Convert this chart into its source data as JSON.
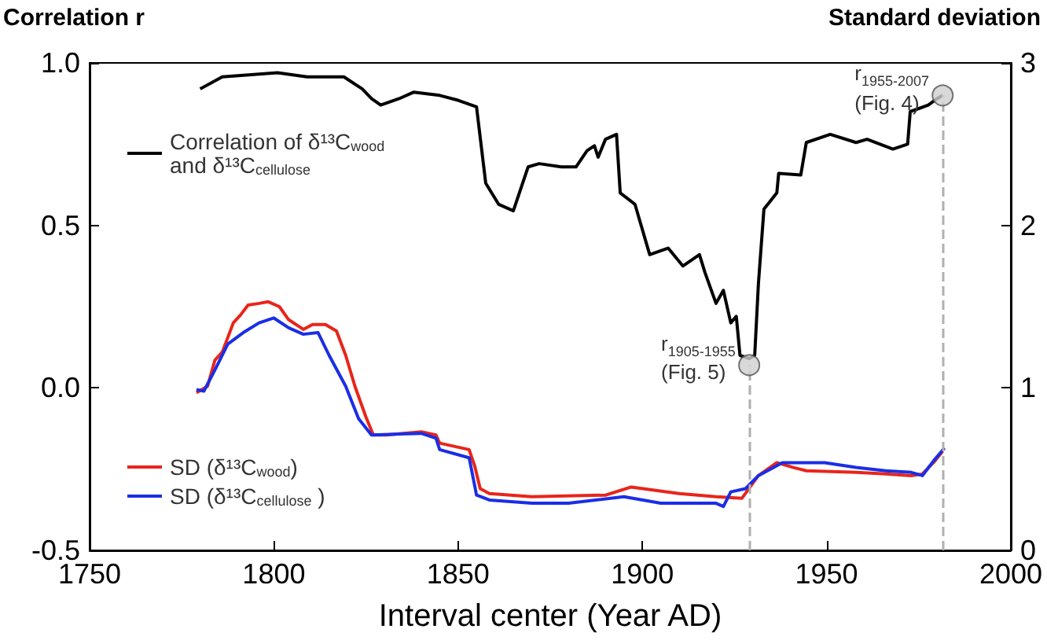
{
  "chart_data": {
    "type": "line",
    "xlabel": "Interval center (Year AD)",
    "ylabel": "Correlation r",
    "y2label": "Standard deviation",
    "xlim": [
      1750,
      2000
    ],
    "xticks": [
      1750,
      1800,
      1850,
      1900,
      1950,
      2000
    ],
    "ylim": [
      -0.5,
      1.0
    ],
    "yticks": [
      {
        "value": -0.5,
        "label": "-0.5"
      },
      {
        "value": 0,
        "label": "0.0"
      },
      {
        "value": 0.5,
        "label": "0.5"
      },
      {
        "value": 1.0,
        "label": "1.0"
      }
    ],
    "y2lim": [
      0,
      3
    ],
    "y2ticks": [
      0,
      1,
      2,
      3
    ],
    "grid": false,
    "legend": "left",
    "marker": "none",
    "line_style": "solid",
    "series": [
      {
        "name": "Correlation of δ¹³C$_{wood}$\nand δ¹³C$_{cellulose}$",
        "color": "#000000",
        "x": [
          1780,
          1786,
          1801,
          1809,
          1819,
          1824,
          1826.5,
          1829,
          1834,
          1838,
          1845,
          1850,
          1855,
          1857.5,
          1861,
          1865,
          1869,
          1872,
          1878,
          1882,
          1885,
          1887,
          1888,
          1890,
          1893,
          1894,
          1898,
          1902,
          1907,
          1911,
          1915.5,
          1917,
          1920,
          1922,
          1924,
          1925.5,
          1926.5,
          1929,
          1930.5,
          1931.5,
          1933,
          1936.5,
          1937,
          1943,
          1944.5,
          1951,
          1958,
          1961,
          1968,
          1972,
          1972.7,
          1977.6,
          1980,
          1981.5
        ],
        "values": [
          0.92,
          0.957,
          0.97,
          0.957,
          0.957,
          0.92,
          0.89,
          0.87,
          0.89,
          0.91,
          0.9,
          0.885,
          0.865,
          0.63,
          0.565,
          0.545,
          0.68,
          0.69,
          0.68,
          0.68,
          0.73,
          0.745,
          0.71,
          0.765,
          0.78,
          0.6,
          0.565,
          0.41,
          0.43,
          0.375,
          0.41,
          0.355,
          0.26,
          0.3,
          0.2,
          0.22,
          0.1,
          0.09,
          0.1,
          0.32,
          0.55,
          0.6,
          0.66,
          0.655,
          0.755,
          0.78,
          0.755,
          0.765,
          0.735,
          0.75,
          0.85,
          0.87,
          0.89,
          0.9
        ]
      },
      {
        "name": "SD (δ¹³C$_{wood}$)",
        "color": "#e8251b",
        "axis": "y2",
        "x": [
          1779,
          1782,
          1784,
          1786,
          1789,
          1791,
          1793,
          1796,
          1798.5,
          1801.5,
          1804,
          1808,
          1810.5,
          1814,
          1817,
          1819.5,
          1822,
          1825,
          1827,
          1830.5,
          1840,
          1844,
          1845,
          1853,
          1854.5,
          1856,
          1858.5,
          1870,
          1890,
          1897,
          1910,
          1920,
          1927,
          1931.5,
          1936.5,
          1941,
          1944.5,
          1958,
          1966,
          1973,
          1976,
          1979,
          1981.5
        ],
        "values": [
          0.97,
          1.01,
          1.17,
          1.22,
          1.4,
          1.45,
          1.51,
          1.52,
          1.53,
          1.5,
          1.42,
          1.36,
          1.39,
          1.39,
          1.35,
          1.2,
          1.01,
          0.82,
          0.71,
          0.71,
          0.73,
          0.71,
          0.66,
          0.62,
          0.52,
          0.38,
          0.35,
          0.33,
          0.34,
          0.39,
          0.35,
          0.33,
          0.32,
          0.46,
          0.54,
          0.51,
          0.49,
          0.48,
          0.47,
          0.46,
          0.47,
          0.54,
          0.61
        ]
      },
      {
        "name": "SD (δ¹³C$_{cellulose}$ )",
        "color": "#1a2ee6",
        "axis": "y2",
        "x": [
          1779,
          1781,
          1784,
          1787.5,
          1791.7,
          1796,
          1800,
          1804,
          1808,
          1812,
          1815,
          1819.5,
          1823,
          1826.5,
          1840,
          1844,
          1845,
          1853,
          1855,
          1858.5,
          1870,
          1880,
          1895,
          1905,
          1920,
          1922,
          1924,
          1928,
          1931.5,
          1938,
          1949.5,
          1958,
          1966,
          1973,
          1976,
          1979,
          1982
        ],
        "values": [
          0.99,
          0.98,
          1.11,
          1.27,
          1.34,
          1.4,
          1.43,
          1.37,
          1.33,
          1.34,
          1.2,
          1.01,
          0.81,
          0.71,
          0.72,
          0.69,
          0.62,
          0.57,
          0.34,
          0.31,
          0.29,
          0.29,
          0.33,
          0.29,
          0.29,
          0.27,
          0.36,
          0.38,
          0.46,
          0.54,
          0.54,
          0.51,
          0.49,
          0.48,
          0.46,
          0.55,
          0.63
        ]
      },
      {
        "type": "scatter",
        "marker": "circle",
        "color": "#d0d0d0",
        "x": [
          1929,
          1981.5
        ],
        "values": [
          0.07,
          0.9
        ]
      }
    ],
    "ref_lines": [
      {
        "axis": "x",
        "value": 1929,
        "color": "#b0b0b0",
        "line_style": "dashed"
      },
      {
        "axis": "x",
        "value": 1981.5,
        "color": "#b0b0b0",
        "line_style": "dashed"
      }
    ],
    "annotations": [
      {
        "text": "r$_{1905-1955}$\n(Fig. 5)",
        "x": 1929,
        "y": 0.07
      },
      {
        "text": "r$_{1955-2007}$\n(Fig. 4)",
        "x": 1981.5,
        "y": 0.9
      }
    ]
  }
}
